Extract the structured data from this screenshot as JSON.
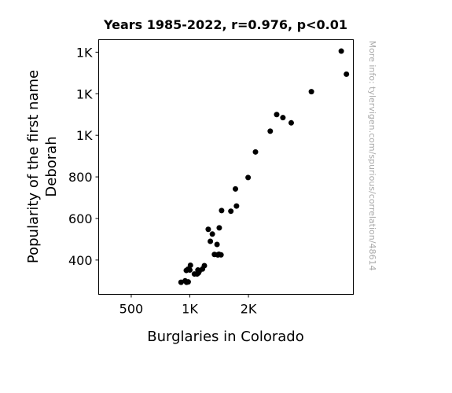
{
  "chart_data": {
    "type": "scatter",
    "title": "Years 1985-2022, r=0.976, p<0.01",
    "xlabel": "Burglaries in Colorado",
    "ylabel_lines": [
      "Popularity of the first name",
      "Deborah"
    ],
    "side_note": "More info: tylervigen.com/spurious/correlation/48614",
    "xlim": [
      222,
      2395
    ],
    "ylim": [
      235,
      1460
    ],
    "x_ticks": [
      {
        "value": 500,
        "label": "500"
      },
      {
        "value": 1000,
        "label": "1K"
      },
      {
        "value": 1500,
        "label": "2K"
      }
    ],
    "y_ticks": [
      {
        "value": 400,
        "label": "400"
      },
      {
        "value": 600,
        "label": "600"
      },
      {
        "value": 800,
        "label": "800"
      },
      {
        "value": 1000,
        "label": "1K"
      },
      {
        "value": 1200,
        "label": "1K"
      },
      {
        "value": 1400,
        "label": "1K"
      }
    ],
    "points": [
      {
        "x": 2292,
        "y": 1405
      },
      {
        "x": 2336,
        "y": 1294
      },
      {
        "x": 2037,
        "y": 1210
      },
      {
        "x": 1865,
        "y": 1060
      },
      {
        "x": 1794,
        "y": 1085
      },
      {
        "x": 1741,
        "y": 1100
      },
      {
        "x": 1686,
        "y": 1020
      },
      {
        "x": 1560,
        "y": 920
      },
      {
        "x": 1497,
        "y": 797
      },
      {
        "x": 1389,
        "y": 742
      },
      {
        "x": 1398,
        "y": 660
      },
      {
        "x": 1350,
        "y": 635
      },
      {
        "x": 1271,
        "y": 638
      },
      {
        "x": 1251,
        "y": 555
      },
      {
        "x": 1157,
        "y": 548
      },
      {
        "x": 1175,
        "y": 490
      },
      {
        "x": 1192,
        "y": 525
      },
      {
        "x": 1232,
        "y": 475
      },
      {
        "x": 1238,
        "y": 425
      },
      {
        "x": 1240,
        "y": 425
      },
      {
        "x": 1248,
        "y": 428
      },
      {
        "x": 1266,
        "y": 425
      },
      {
        "x": 1210,
        "y": 427
      },
      {
        "x": 1124,
        "y": 373
      },
      {
        "x": 1108,
        "y": 357
      },
      {
        "x": 1080,
        "y": 346
      },
      {
        "x": 1069,
        "y": 352
      },
      {
        "x": 1073,
        "y": 338
      },
      {
        "x": 1062,
        "y": 333
      },
      {
        "x": 1039,
        "y": 333
      },
      {
        "x": 1005,
        "y": 375
      },
      {
        "x": 1000,
        "y": 352
      },
      {
        "x": 984,
        "y": 356
      },
      {
        "x": 970,
        "y": 350
      },
      {
        "x": 960,
        "y": 300
      },
      {
        "x": 972,
        "y": 293
      },
      {
        "x": 986,
        "y": 295
      },
      {
        "x": 925,
        "y": 293
      }
    ]
  }
}
